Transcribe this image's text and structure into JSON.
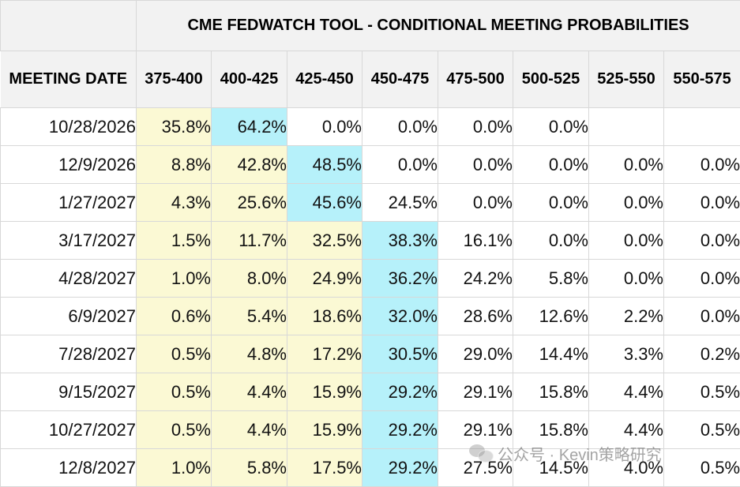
{
  "title": "CME FEDWATCH TOOL - CONDITIONAL MEETING PROBABILITIES",
  "columns": {
    "date_header": "MEETING DATE",
    "ranges": [
      "375-400",
      "400-425",
      "425-450",
      "450-475",
      "475-500",
      "500-525",
      "525-550",
      "550-575"
    ]
  },
  "rows": [
    {
      "date": "10/28/2026",
      "values": [
        "35.8%",
        "64.2%",
        "0.0%",
        "0.0%",
        "0.0%",
        "0.0%",
        "",
        ""
      ],
      "shade": [
        "y",
        "b",
        "",
        "",
        "",
        "",
        "",
        ""
      ]
    },
    {
      "date": "12/9/2026",
      "values": [
        "8.8%",
        "42.8%",
        "48.5%",
        "0.0%",
        "0.0%",
        "0.0%",
        "0.0%",
        "0.0%"
      ],
      "shade": [
        "y",
        "y",
        "b",
        "",
        "",
        "",
        "",
        ""
      ]
    },
    {
      "date": "1/27/2027",
      "values": [
        "4.3%",
        "25.6%",
        "45.6%",
        "24.5%",
        "0.0%",
        "0.0%",
        "0.0%",
        "0.0%"
      ],
      "shade": [
        "y",
        "y",
        "b",
        "",
        "",
        "",
        "",
        ""
      ]
    },
    {
      "date": "3/17/2027",
      "values": [
        "1.5%",
        "11.7%",
        "32.5%",
        "38.3%",
        "16.1%",
        "0.0%",
        "0.0%",
        "0.0%"
      ],
      "shade": [
        "y",
        "y",
        "y",
        "b",
        "",
        "",
        "",
        ""
      ]
    },
    {
      "date": "4/28/2027",
      "values": [
        "1.0%",
        "8.0%",
        "24.9%",
        "36.2%",
        "24.2%",
        "5.8%",
        "0.0%",
        "0.0%"
      ],
      "shade": [
        "y",
        "y",
        "y",
        "b",
        "",
        "",
        "",
        ""
      ]
    },
    {
      "date": "6/9/2027",
      "values": [
        "0.6%",
        "5.4%",
        "18.6%",
        "32.0%",
        "28.6%",
        "12.6%",
        "2.2%",
        "0.0%"
      ],
      "shade": [
        "y",
        "y",
        "y",
        "b",
        "",
        "",
        "",
        ""
      ]
    },
    {
      "date": "7/28/2027",
      "values": [
        "0.5%",
        "4.8%",
        "17.2%",
        "30.5%",
        "29.0%",
        "14.4%",
        "3.3%",
        "0.2%"
      ],
      "shade": [
        "y",
        "y",
        "y",
        "b",
        "",
        "",
        "",
        ""
      ]
    },
    {
      "date": "9/15/2027",
      "values": [
        "0.5%",
        "4.4%",
        "15.9%",
        "29.2%",
        "29.1%",
        "15.8%",
        "4.4%",
        "0.5%"
      ],
      "shade": [
        "y",
        "y",
        "y",
        "b",
        "",
        "",
        "",
        ""
      ]
    },
    {
      "date": "10/27/2027",
      "values": [
        "0.5%",
        "4.4%",
        "15.9%",
        "29.2%",
        "29.1%",
        "15.8%",
        "4.4%",
        "0.5%"
      ],
      "shade": [
        "y",
        "y",
        "y",
        "b",
        "",
        "",
        "",
        ""
      ]
    },
    {
      "date": "12/8/2027",
      "values": [
        "1.0%",
        "5.8%",
        "17.5%",
        "29.2%",
        "27.5%",
        "14.5%",
        "4.0%",
        "0.5%"
      ],
      "shade": [
        "y",
        "y",
        "y",
        "b",
        "",
        "",
        "",
        ""
      ]
    }
  ],
  "watermark": {
    "text": "公众号 · Kevin策略研究",
    "icon": "wechat-icon"
  },
  "colors": {
    "header_bg": "#f2f2f2",
    "yellow_shade": "#fbf9d4",
    "blue_shade": "#b6f1fa",
    "grid": "#d8d8d8"
  }
}
